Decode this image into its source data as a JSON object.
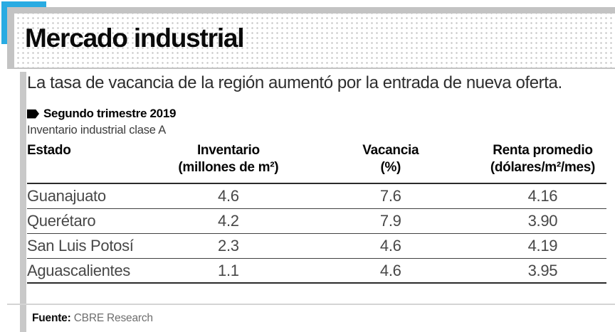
{
  "colors": {
    "accent_cyan": "#29abe2",
    "card_gray": "#c3c3c3",
    "dot_gray": "#c9c9c9",
    "rule_dark": "#2a2a2a",
    "text_dark": "#0a0a0a",
    "cell_gray": "#474747",
    "source_gray": "#6e6e6e"
  },
  "header": {
    "title": "Mercado industrial"
  },
  "intro": {
    "subtitle": "La tasa de vacancia de la región aumentó por la entrada de nueva oferta.",
    "period_label": "Segundo trimestre 2019",
    "dataset_label": "Inventario industrial clase A"
  },
  "table": {
    "columns": [
      {
        "label": "Estado",
        "unit": ""
      },
      {
        "label": "Inventario",
        "unit": "(millones de m²)"
      },
      {
        "label": "Vacancia",
        "unit": "(%)"
      },
      {
        "label": "Renta promedio",
        "unit": "(dólares/m²/mes)"
      }
    ],
    "rows": [
      {
        "estado": "Guanajuato",
        "inventario": "4.6",
        "vacancia": "7.6",
        "renta": "4.16"
      },
      {
        "estado": "Querétaro",
        "inventario": "4.2",
        "vacancia": "7.9",
        "renta": "3.90"
      },
      {
        "estado": "San Luis Potosí",
        "inventario": "2.3",
        "vacancia": "4.6",
        "renta": "4.19"
      },
      {
        "estado": "Aguascalientes",
        "inventario": "1.1",
        "vacancia": "4.6",
        "renta": "3.95"
      }
    ]
  },
  "footer": {
    "source_label": "Fuente:",
    "source_value": "CBRE Research"
  },
  "chart_data": {
    "type": "table",
    "title": "Mercado industrial",
    "subtitle": "La tasa de vacancia de la región aumentó por la entrada de nueva oferta.",
    "period": "Segundo trimestre 2019",
    "dataset": "Inventario industrial clase A",
    "columns": [
      "Estado",
      "Inventario (millones de m²)",
      "Vacancia (%)",
      "Renta promedio (dólares/m²/mes)"
    ],
    "rows": [
      [
        "Guanajuato",
        4.6,
        7.6,
        4.16
      ],
      [
        "Querétaro",
        4.2,
        7.9,
        3.9
      ],
      [
        "San Luis Potosí",
        2.3,
        4.6,
        4.19
      ],
      [
        "Aguascalientes",
        1.1,
        4.6,
        3.95
      ]
    ],
    "source": "CBRE Research"
  }
}
